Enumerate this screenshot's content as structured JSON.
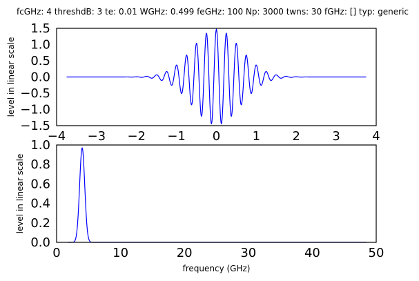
{
  "title": "fcGHz: 4 threshdB: 3 te: 0.01 WGHz: 0.499 feGHz: 100 Np: 3000 twns: 30 fGHz: [] typ: generic",
  "chart_data": [
    {
      "type": "line",
      "panel": "top",
      "ylabel": "level in linear scale",
      "xlabel": "",
      "xlim": [
        -4,
        4
      ],
      "ylim": [
        -1.5,
        1.5
      ],
      "xticks": [
        -4,
        -3,
        -2,
        -1,
        0,
        1,
        2,
        3,
        4
      ],
      "xtick_labels": [
        "−4",
        "−3",
        "−2",
        "−1",
        "0",
        "1",
        "2",
        "3",
        "4"
      ],
      "yticks": [
        1.5,
        1.0,
        0.5,
        0.0,
        -0.5,
        -1.0,
        -1.5
      ],
      "ytick_labels": [
        "1.5",
        "1.0",
        "0.5",
        "0.0",
        "−0.5",
        "−1.0",
        "−1.5"
      ],
      "grid": false,
      "series": [
        {
          "color": "#0000ff",
          "function": "gaussian-modulated cosine",
          "x_range": [
            -3.75,
            3.75
          ],
          "amplitude": 1.47,
          "carrier_GHz": 4,
          "envelope_sigma": 0.6
        }
      ]
    },
    {
      "type": "line",
      "panel": "bottom",
      "ylabel": "level in linear scale",
      "xlabel": "frequency (GHz)",
      "xlim": [
        0,
        50
      ],
      "ylim": [
        0,
        1
      ],
      "xticks": [
        0,
        10,
        20,
        30,
        40,
        50
      ],
      "xtick_labels": [
        "0",
        "10",
        "20",
        "30",
        "40",
        "50"
      ],
      "yticks": [
        1.0,
        0.8,
        0.6,
        0.4,
        0.2,
        0.0
      ],
      "ytick_labels": [
        "1.0",
        "0.8",
        "0.6",
        "0.4",
        "0.2",
        "0.0"
      ],
      "grid": false,
      "series": [
        {
          "color": "#0000ff",
          "function": "gaussian peak",
          "x_range": [
            1.8,
            48.5
          ],
          "peak_x": 4,
          "peak_y": 0.97,
          "sigma": 0.4
        }
      ]
    }
  ]
}
